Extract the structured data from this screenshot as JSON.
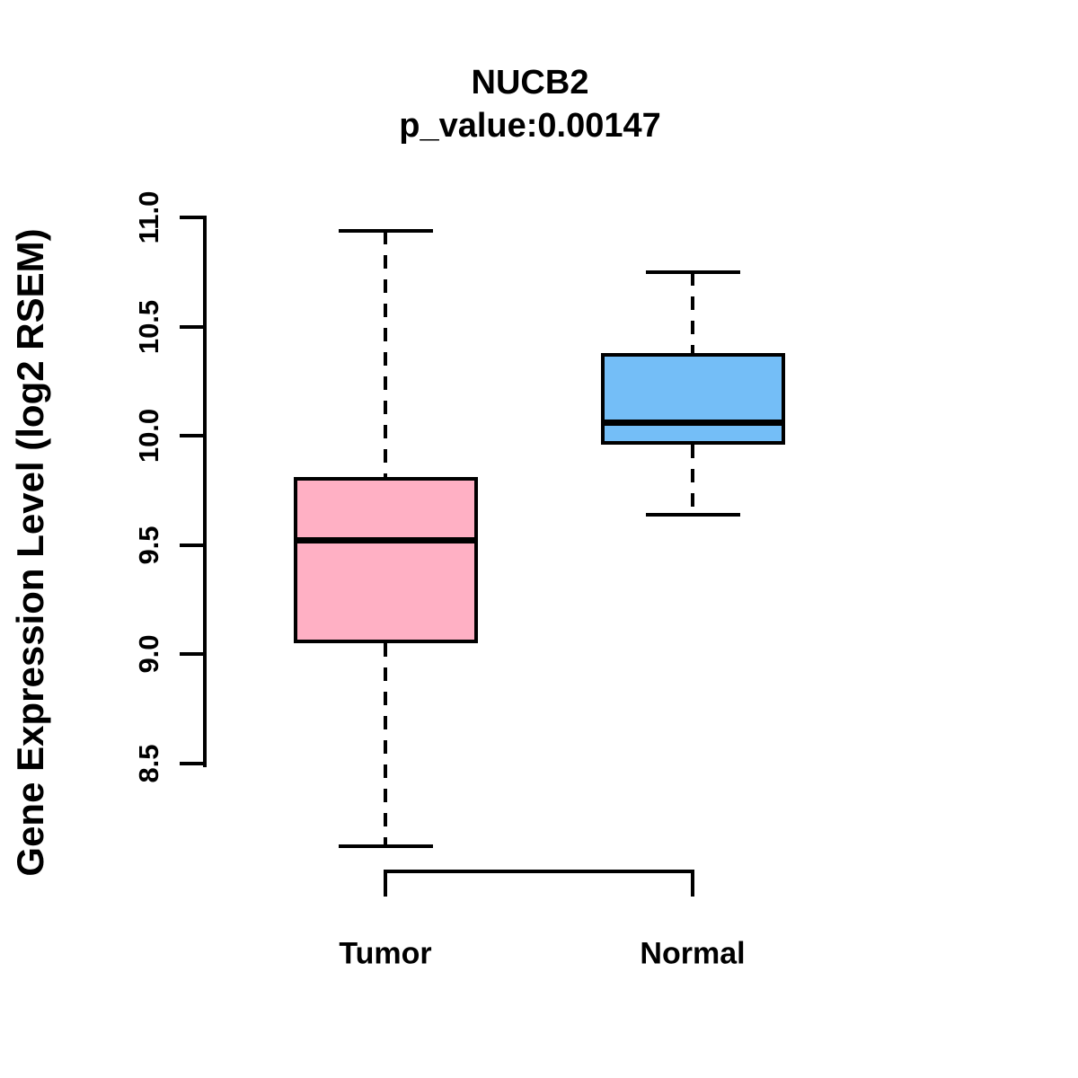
{
  "chart_data": {
    "type": "boxplot",
    "title": "NUCB2",
    "subtitle": "p_value:0.00147",
    "ylabel": "Gene Expression Level (log2 RSEM)",
    "xlabel": "",
    "categories": [
      "Tumor",
      "Normal"
    ],
    "series": [
      {
        "name": "Tumor",
        "color": "#FFB0C4",
        "lower_whisker": 8.12,
        "q1": 9.05,
        "median": 9.52,
        "q3": 9.81,
        "upper_whisker": 10.94
      },
      {
        "name": "Normal",
        "color": "#74BEF7",
        "lower_whisker": 9.64,
        "q1": 9.96,
        "median": 10.06,
        "q3": 10.38,
        "upper_whisker": 10.75
      }
    ],
    "yticks": [
      8.5,
      9.0,
      9.5,
      10.0,
      10.5,
      11.0
    ],
    "ytick_labels": [
      "8.5",
      "9.0",
      "9.5",
      "10.0",
      "10.5",
      "11.0"
    ],
    "ylim": [
      8.5,
      11.0
    ],
    "grid": false,
    "legend": "none",
    "colors": {
      "tumor_fill": "#FFB0C4",
      "normal_fill": "#74BEF7",
      "line": "#000000",
      "background": "#FFFFFF"
    }
  }
}
